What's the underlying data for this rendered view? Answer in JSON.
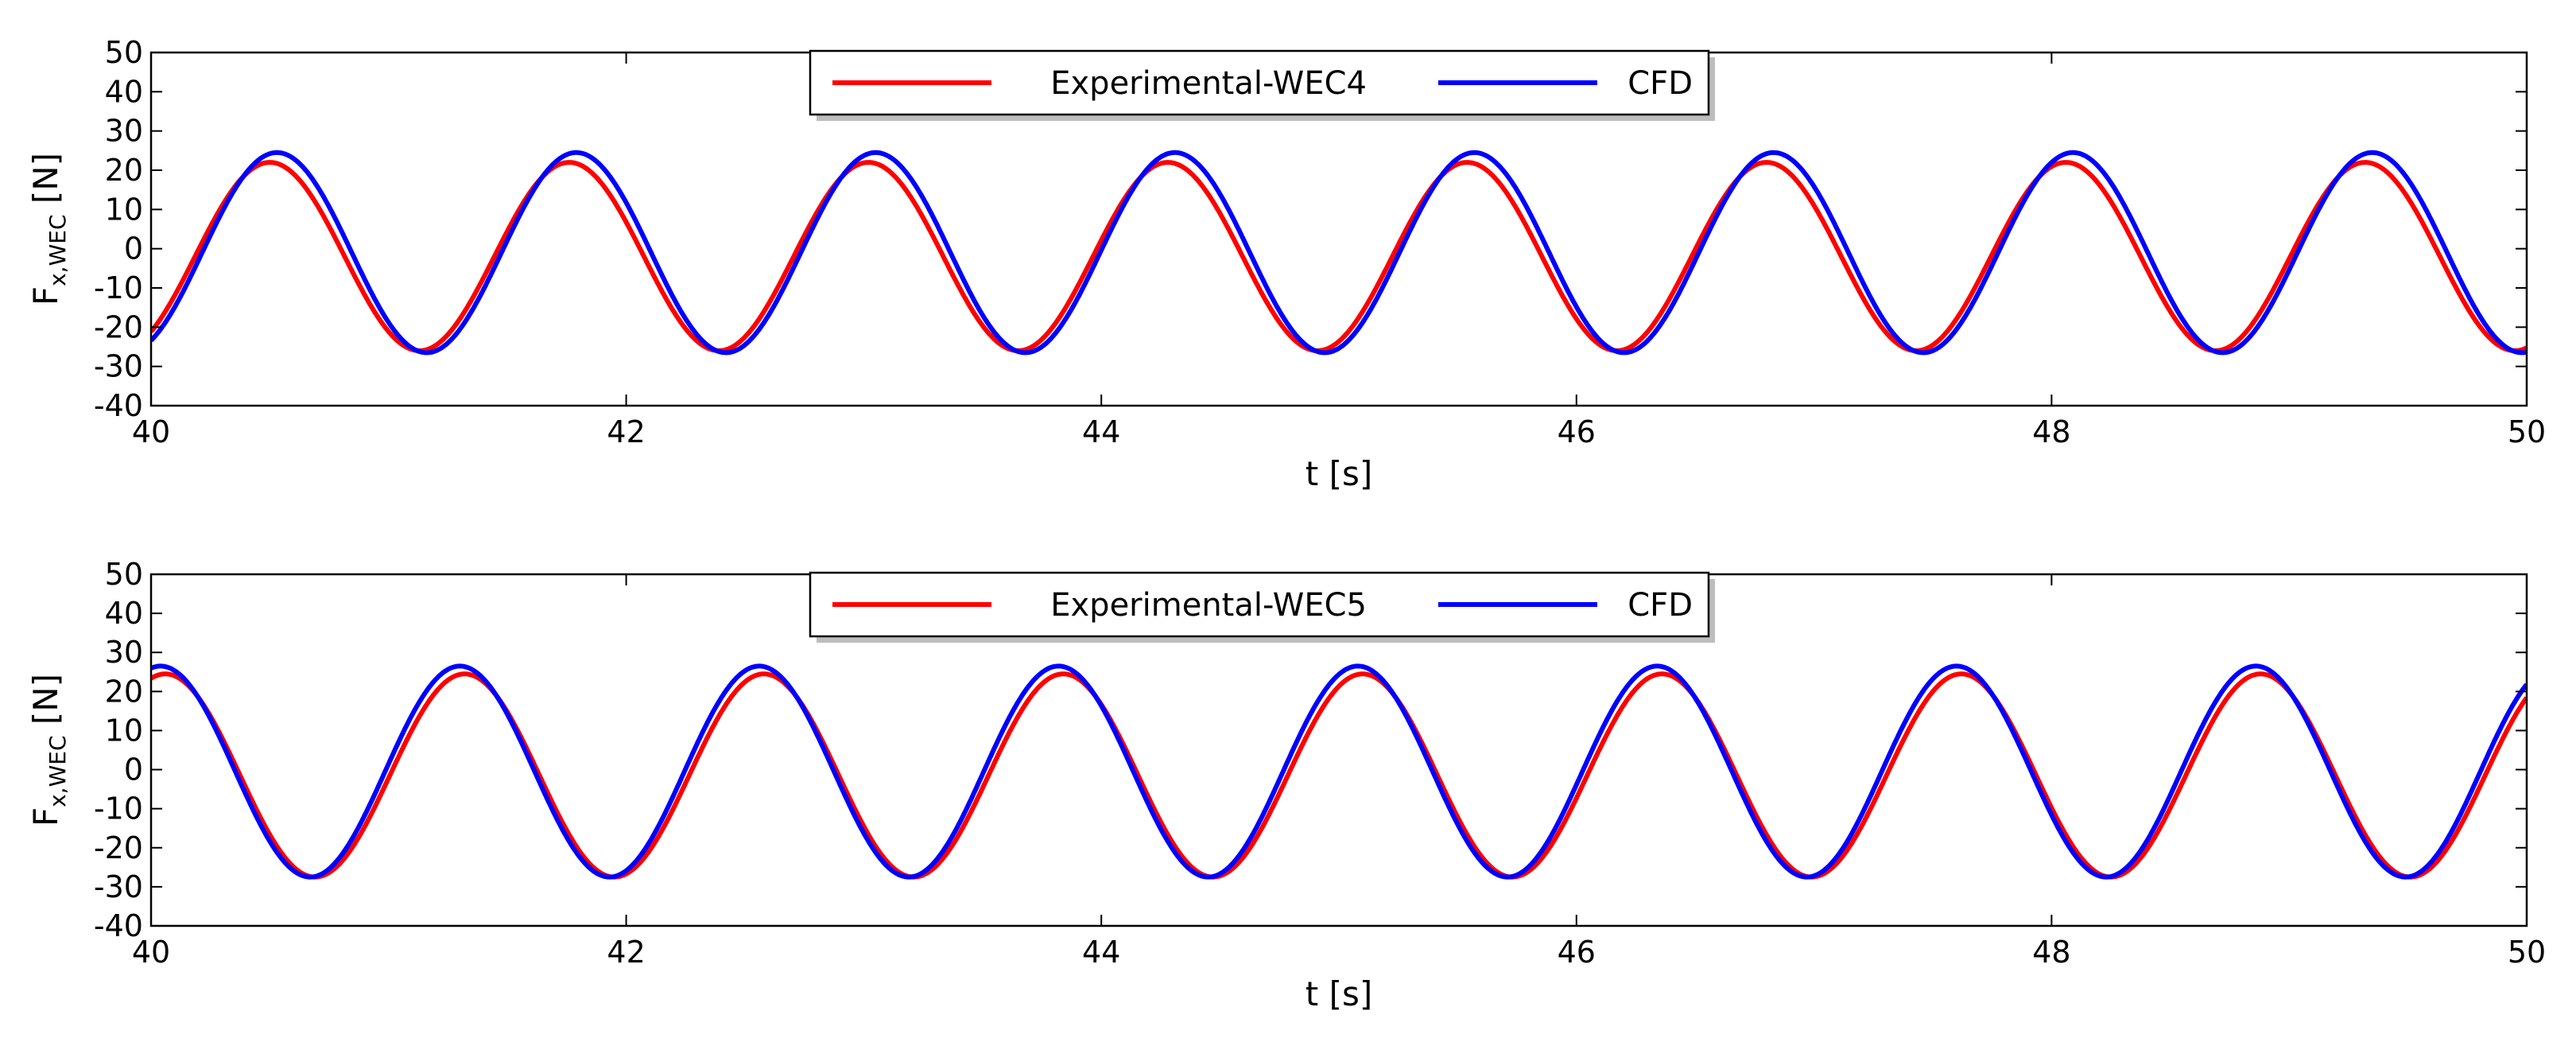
{
  "colors": {
    "experimental": "#ff0000",
    "cfd": "#0000ff",
    "axes": "#000000",
    "background": "#ffffff"
  },
  "chart_data": [
    {
      "type": "line",
      "title": "",
      "xlabel": "t [s]",
      "ylabel_main": "F",
      "ylabel_sub": "x,WEC",
      "ylabel_unit": "[N]",
      "xlim": [
        40,
        50
      ],
      "ylim": [
        -40,
        50
      ],
      "grid": false,
      "legend_position": "top-center",
      "x_ticks": [
        "40",
        "42",
        "44",
        "46",
        "48",
        "50"
      ],
      "y_ticks": [
        "-40",
        "-30",
        "-20",
        "-10",
        "0",
        "10",
        "20",
        "30",
        "40",
        "50"
      ],
      "series": [
        {
          "name": "Experimental-WEC4",
          "color": "#ff0000",
          "model": "sinusoid",
          "period": 1.26,
          "mean": -2,
          "amplitude": 24,
          "peak_time": 40.5,
          "max": 22,
          "min": -26
        },
        {
          "name": "CFD",
          "color": "#0000ff",
          "model": "sinusoid",
          "period": 1.26,
          "mean": -1,
          "amplitude": 25.5,
          "peak_time": 40.53,
          "max": 24.5,
          "min": -26.5
        }
      ]
    },
    {
      "type": "line",
      "title": "",
      "xlabel": "t [s]",
      "ylabel_main": "F",
      "ylabel_sub": "x,WEC",
      "ylabel_unit": "[N]",
      "xlim": [
        40,
        50
      ],
      "ylim": [
        -40,
        50
      ],
      "grid": false,
      "legend_position": "top-center",
      "x_ticks": [
        "40",
        "42",
        "44",
        "46",
        "48",
        "50"
      ],
      "y_ticks": [
        "-40",
        "-30",
        "-20",
        "-10",
        "0",
        "10",
        "20",
        "30",
        "40",
        "50"
      ],
      "series": [
        {
          "name": "Experimental-WEC5",
          "color": "#ff0000",
          "model": "sinusoid",
          "period": 1.26,
          "mean": -1.5,
          "amplitude": 26,
          "peak_time": 40.06,
          "max": 24.5,
          "min": -27.5
        },
        {
          "name": "CFD",
          "color": "#0000ff",
          "model": "sinusoid",
          "period": 1.26,
          "mean": -0.5,
          "amplitude": 27,
          "peak_time": 40.04,
          "max": 26.5,
          "min": -27.5
        }
      ]
    }
  ]
}
